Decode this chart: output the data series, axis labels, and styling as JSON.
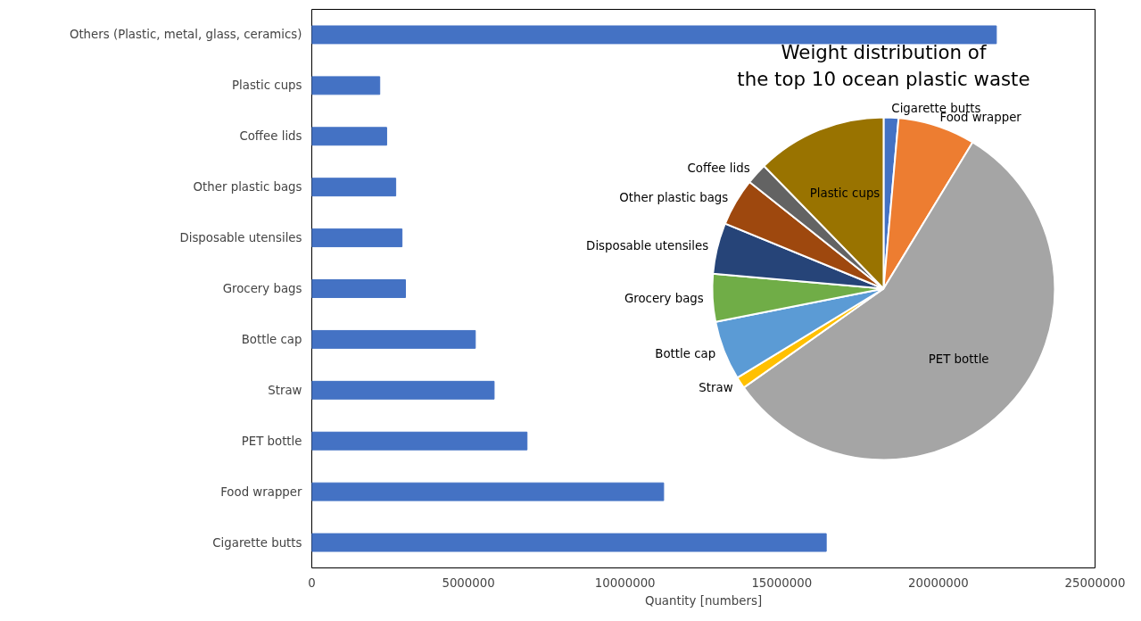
{
  "chart_data": [
    {
      "type": "bar",
      "orientation": "horizontal",
      "xlabel": "Quantity [numbers]",
      "categories": [
        "Others (Plastic, metal, glass, ceramics)",
        "Plastic cups",
        "Coffee lids",
        "Other plastic bags",
        "Disposable utensiles",
        "Grocery bags",
        "Bottle cap",
        "Straw",
        "PET bottle",
        "Food wrapper",
        "Cigarette butts"
      ],
      "values": [
        21850000,
        2170000,
        2390000,
        2680000,
        2880000,
        2990000,
        5220000,
        5820000,
        6870000,
        11230000,
        16420000
      ],
      "color": "#4472c4",
      "xlim": [
        0,
        25000000
      ],
      "xticks": [
        0,
        5000000,
        10000000,
        15000000,
        20000000,
        25000000
      ],
      "grid": false
    },
    {
      "type": "pie",
      "title": "Weight distribution of\nthe top 10 ocean plastic waste",
      "categories": [
        "Cigarette butts",
        "Food wrapper",
        "PET bottle",
        "Straw",
        "Bottle cap",
        "Grocery bags",
        "Disposable utensiles",
        "Other plastic bags",
        "Coffee lids",
        "Plastic cups"
      ],
      "values": [
        1.4,
        7.3,
        56.5,
        1.1,
        5.6,
        4.5,
        4.8,
        4.5,
        2.0,
        12.3
      ],
      "colors": [
        "#4472c4",
        "#ed7d31",
        "#a5a5a5",
        "#ffc000",
        "#5b9bd5",
        "#70ad47",
        "#264478",
        "#9e480e",
        "#636363",
        "#997300"
      ]
    }
  ]
}
